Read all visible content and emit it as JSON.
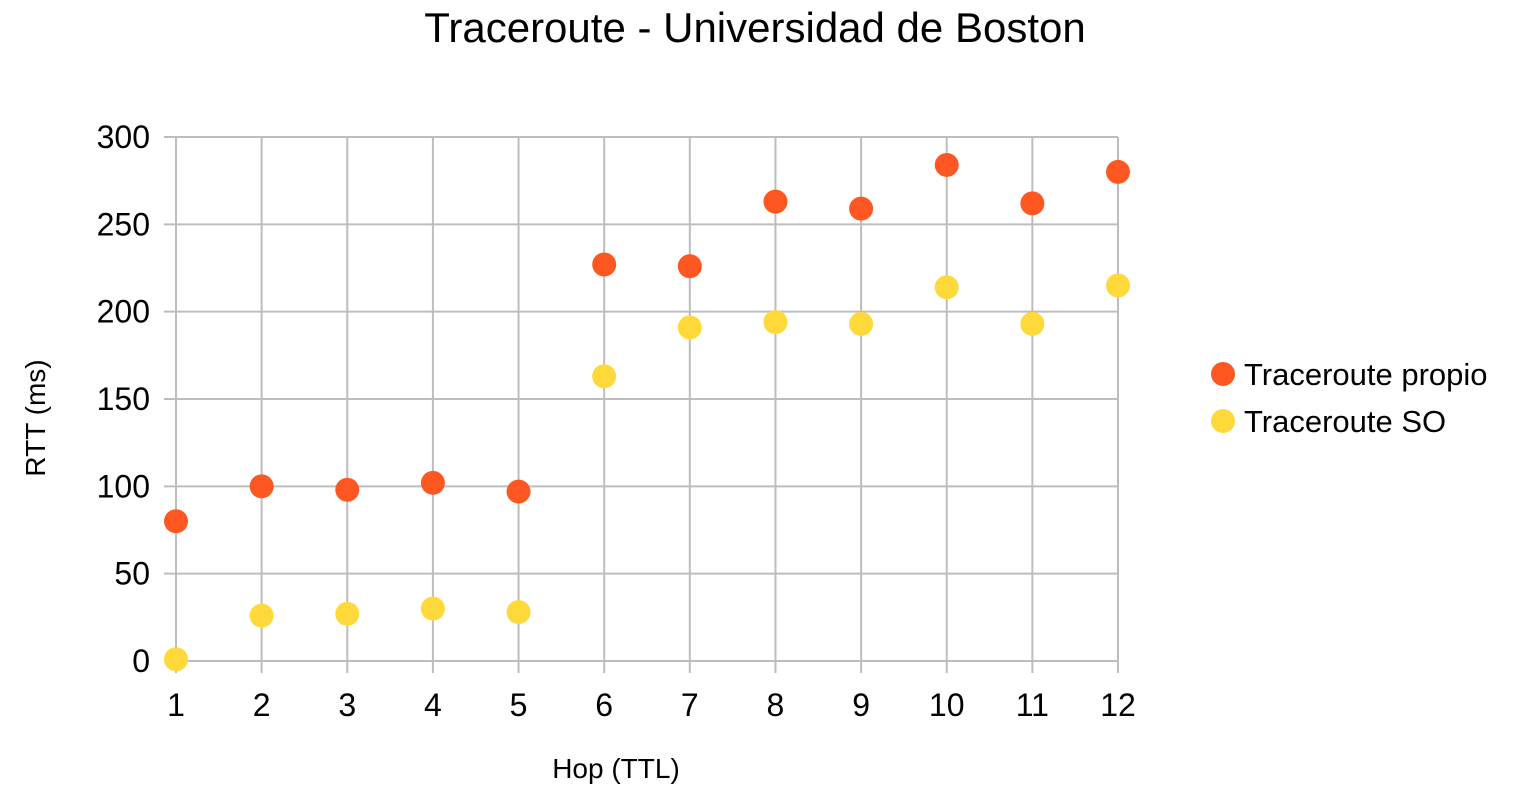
{
  "chart_data": {
    "type": "scatter",
    "title": "Traceroute - Universidad de Boston",
    "xlabel": "Hop (TTL)",
    "ylabel": "RTT (ms)",
    "xlim": [
      1,
      12
    ],
    "ylim": [
      0,
      300
    ],
    "x_ticks": [
      1,
      2,
      3,
      4,
      5,
      6,
      7,
      8,
      9,
      10,
      11,
      12
    ],
    "y_ticks": [
      0,
      50,
      100,
      150,
      200,
      250,
      300
    ],
    "grid": true,
    "legend_position": "right",
    "series": [
      {
        "name": "Traceroute propio",
        "color": "#ff5722",
        "x": [
          1,
          2,
          3,
          4,
          5,
          6,
          7,
          8,
          9,
          10,
          11,
          12
        ],
        "y": [
          80,
          100,
          98,
          102,
          97,
          227,
          226,
          263,
          259,
          284,
          262,
          280
        ]
      },
      {
        "name": "Traceroute SO",
        "color": "#ffd83a",
        "x": [
          1,
          2,
          3,
          4,
          5,
          6,
          7,
          8,
          9,
          10,
          11,
          12
        ],
        "y": [
          1,
          26,
          27,
          30,
          28,
          163,
          191,
          194,
          193,
          214,
          193,
          215
        ]
      }
    ]
  }
}
